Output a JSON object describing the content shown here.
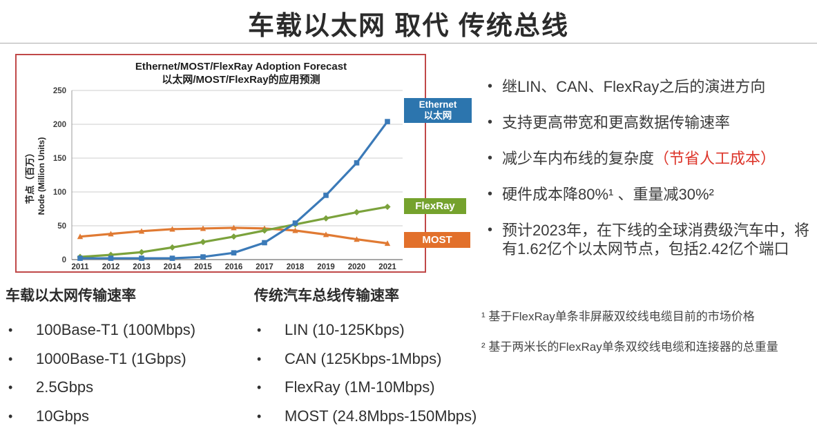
{
  "title": "车载以太网 取代 传统总线",
  "colors": {
    "panel_border": "#c04848",
    "highlight_red_text": "#dd362b",
    "legend_ethernet_bg": "#2c75ae",
    "legend_flexray_bg": "#75a22d",
    "legend_most_bg": "#e2702b"
  },
  "bullets": [
    {
      "text": "继LIN、CAN、FlexRay之后的演进方向"
    },
    {
      "text": "支持更高带宽和更高数据传输速率"
    },
    {
      "text": "减少车内布线的复杂度",
      "highlight": "（节省人工成本）"
    },
    {
      "text": "硬件成本降80%¹ 、重量减30%²"
    },
    {
      "text": "预计2023年，在下线的全球消费级汽车中，将有1.62亿个以太网节点，包括2.42亿个端口"
    }
  ],
  "footnotes": [
    "¹ 基于FlexRay单条非屏蔽双绞线电缆目前的市场价格",
    "² 基于两米长的FlexRay单条双绞线电缆和连接器的总重量"
  ],
  "speed_lists": {
    "ethernet": {
      "header": "车载以太网传输速率",
      "items": [
        "100Base-T1 (100Mbps)",
        "1000Base-T1 (1Gbps)",
        "2.5Gbps",
        "10Gbps"
      ]
    },
    "legacy": {
      "header": "传统汽车总线传输速率",
      "items": [
        "LIN (10-125Kbps)",
        "CAN (125Kbps-1Mbps)",
        "FlexRay (1M-10Mbps)",
        "MOST (24.8Mbps-150Mbps)"
      ]
    }
  },
  "chart_data": {
    "type": "line",
    "title": "Ethernet/MOST/FlexRay Adoption Forecast",
    "subtitle": "以太网/MOST/FlexRay的应用预测",
    "ylabel_cn": "节点（百万）",
    "ylabel_en": "Node (Million Units)",
    "xlabel": "",
    "ylim": [
      0,
      250
    ],
    "yticks": [
      0,
      50,
      100,
      150,
      200,
      250
    ],
    "grid": true,
    "legend_position": "right",
    "x": [
      2011,
      2012,
      2013,
      2014,
      2015,
      2016,
      2017,
      2018,
      2019,
      2020,
      2021
    ],
    "series": [
      {
        "name": "MOST",
        "color": "#e07a33",
        "marker": "triangle",
        "values": [
          34,
          38,
          42,
          45,
          46,
          47,
          46,
          43,
          37,
          30,
          24
        ]
      },
      {
        "name": "FlexRay",
        "color": "#7ba23c",
        "marker": "diamond",
        "values": [
          4,
          7,
          11,
          18,
          26,
          34,
          43,
          52,
          61,
          70,
          78
        ]
      },
      {
        "name": "Ethernet",
        "name_cn": "以太网",
        "color": "#3b7ab8",
        "marker": "square",
        "values": [
          2,
          2,
          2,
          2,
          4,
          10,
          25,
          54,
          95,
          143,
          204
        ]
      }
    ]
  }
}
